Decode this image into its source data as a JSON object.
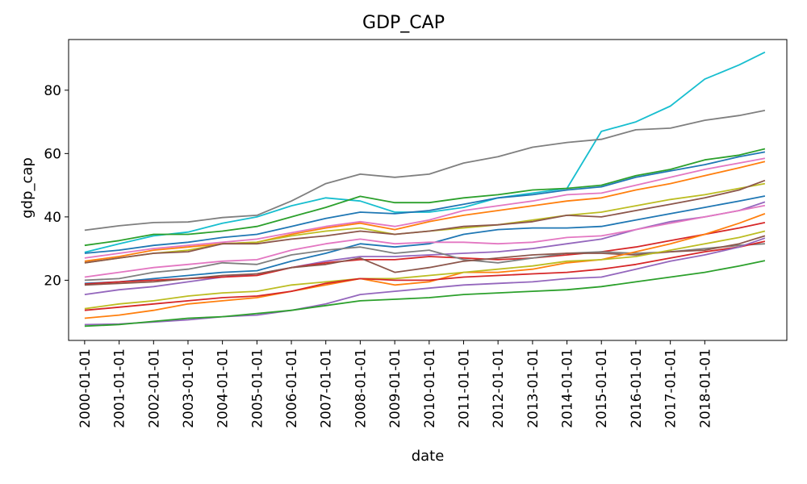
{
  "chart_data": {
    "type": "line",
    "title": "GDP_CAP",
    "xlabel": "date",
    "ylabel": "gdp_cap",
    "x_ticks": [
      "2000-01-01",
      "2001-01-01",
      "2002-01-01",
      "2003-01-01",
      "2004-01-01",
      "2005-01-01",
      "2006-01-01",
      "2007-01-01",
      "2008-01-01",
      "2009-01-01",
      "2010-01-01",
      "2011-01-01",
      "2012-01-01",
      "2013-01-01",
      "2014-01-01",
      "2015-01-01",
      "2016-01-01",
      "2017-01-01",
      "2018-01-01"
    ],
    "y_ticks": [
      20,
      40,
      60,
      80
    ],
    "ylim": [
      1,
      96
    ],
    "xlim": [
      "1999-07-15",
      "2020-05-20"
    ],
    "grid": false,
    "legend": "none",
    "x": [
      "2000-01-01",
      "2001-01-01",
      "2002-01-01",
      "2003-01-01",
      "2004-01-01",
      "2005-01-01",
      "2006-01-01",
      "2007-01-01",
      "2008-01-01",
      "2009-01-01",
      "2010-01-01",
      "2011-01-01",
      "2012-01-01",
      "2013-01-01",
      "2014-01-01",
      "2015-01-01",
      "2016-01-01",
      "2017-01-01",
      "2018-01-01",
      "2019-01-01",
      "2019-10-01"
    ],
    "series": [
      {
        "color": "#17becf",
        "values": [
          28.8,
          31.5,
          34.0,
          35.2,
          38.0,
          40.0,
          43.5,
          46.0,
          45.0,
          41.5,
          41.5,
          43.0,
          46.0,
          47.5,
          49.0,
          67.0,
          70.0,
          75.0,
          83.5,
          88.0,
          92.0
        ]
      },
      {
        "color": "#7f7f7f",
        "values": [
          35.8,
          37.2,
          38.2,
          38.4,
          39.8,
          40.5,
          45.0,
          50.5,
          53.5,
          52.5,
          53.5,
          57.0,
          59.0,
          62.0,
          63.5,
          64.5,
          67.5,
          68.0,
          70.5,
          72.0,
          73.6
        ]
      },
      {
        "color": "#2ca02c",
        "values": [
          31.0,
          32.5,
          34.5,
          34.5,
          35.5,
          37.0,
          40.0,
          43.0,
          46.5,
          44.5,
          44.5,
          46.0,
          47.0,
          48.5,
          49.0,
          50.0,
          53.0,
          55.0,
          58.0,
          59.5,
          61.5
        ]
      },
      {
        "color": "#1f77b4",
        "values": [
          28.5,
          29.5,
          31.0,
          32.0,
          33.5,
          34.5,
          37.0,
          39.5,
          41.5,
          41.0,
          42.0,
          44.0,
          46.0,
          47.0,
          48.5,
          49.5,
          52.5,
          54.5,
          56.5,
          59.0,
          60.5
        ]
      },
      {
        "color": "#e377c2",
        "values": [
          27.0,
          28.5,
          30.0,
          31.0,
          32.0,
          33.0,
          35.0,
          37.0,
          38.5,
          37.0,
          39.0,
          42.0,
          43.5,
          45.0,
          47.0,
          47.5,
          50.0,
          52.5,
          55.0,
          57.0,
          58.5
        ]
      },
      {
        "color": "#ff7f0e",
        "values": [
          26.0,
          27.5,
          29.5,
          30.5,
          31.5,
          32.0,
          34.5,
          36.5,
          38.0,
          36.0,
          38.5,
          40.5,
          42.0,
          43.5,
          45.0,
          46.0,
          48.5,
          50.5,
          53.0,
          55.5,
          57.5
        ]
      },
      {
        "color": "#bcbd22",
        "values": [
          25.5,
          27.0,
          28.5,
          29.5,
          31.5,
          32.0,
          34.0,
          35.5,
          36.5,
          34.5,
          35.5,
          36.5,
          37.5,
          39.0,
          40.5,
          41.5,
          43.5,
          45.5,
          47.0,
          49.0,
          50.5
        ]
      },
      {
        "color": "#8c564b",
        "values": [
          25.5,
          27.0,
          28.5,
          29.0,
          31.5,
          31.5,
          33.0,
          34.0,
          35.5,
          34.5,
          35.5,
          37.0,
          37.5,
          38.5,
          40.5,
          40.0,
          42.0,
          44.0,
          46.0,
          48.5,
          51.5
        ]
      },
      {
        "color": "#1f77b4",
        "values": [
          19.0,
          19.5,
          20.5,
          21.5,
          22.5,
          23.0,
          26.0,
          28.5,
          31.5,
          30.5,
          31.5,
          34.5,
          36.0,
          36.5,
          36.5,
          37.0,
          39.0,
          41.0,
          43.0,
          45.0,
          46.6
        ]
      },
      {
        "color": "#9467bd",
        "values": [
          15.5,
          17.0,
          18.0,
          19.5,
          21.0,
          22.0,
          24.0,
          26.0,
          27.5,
          27.5,
          28.0,
          28.5,
          29.0,
          30.0,
          31.5,
          33.0,
          36.0,
          38.5,
          40.0,
          42.0,
          44.7
        ]
      },
      {
        "color": "#e377c2",
        "values": [
          21.0,
          22.5,
          24.0,
          25.0,
          26.0,
          26.5,
          29.5,
          31.5,
          33.0,
          31.5,
          32.0,
          32.0,
          31.5,
          32.0,
          33.5,
          34.0,
          36.0,
          38.0,
          40.0,
          42.0,
          43.6
        ]
      },
      {
        "color": "#d62728",
        "values": [
          18.8,
          19.5,
          20.0,
          20.5,
          21.0,
          21.5,
          24.0,
          25.5,
          26.5,
          26.5,
          27.5,
          27.0,
          26.5,
          27.0,
          28.0,
          29.0,
          30.5,
          32.5,
          34.5,
          36.5,
          38.2
        ]
      },
      {
        "color": "#7f7f7f",
        "values": [
          20.0,
          20.5,
          22.5,
          23.5,
          25.5,
          25.0,
          28.0,
          29.5,
          30.5,
          28.5,
          29.5,
          26.5,
          25.5,
          27.0,
          28.5,
          29.0,
          28.5,
          29.0,
          30.0,
          31.0,
          31.5
        ]
      },
      {
        "color": "#8c564b",
        "values": [
          18.5,
          19.0,
          19.5,
          20.5,
          21.5,
          22.0,
          24.0,
          25.0,
          27.0,
          22.5,
          24.0,
          26.0,
          27.0,
          28.0,
          28.5,
          28.5,
          28.0,
          29.0,
          29.5,
          31.5,
          34.0
        ]
      },
      {
        "color": "#ff7f0e",
        "values": [
          8.0,
          9.0,
          10.5,
          12.5,
          13.5,
          14.5,
          16.5,
          18.5,
          20.5,
          18.5,
          19.5,
          22.5,
          22.5,
          23.5,
          25.5,
          26.5,
          29.0,
          31.5,
          34.5,
          38.0,
          41.0
        ]
      },
      {
        "color": "#bcbd22",
        "values": [
          11.0,
          12.5,
          13.5,
          15.0,
          16.0,
          16.5,
          18.5,
          19.5,
          20.5,
          20.5,
          21.5,
          22.5,
          23.5,
          24.5,
          26.0,
          26.5,
          27.5,
          29.5,
          31.5,
          33.5,
          35.5
        ]
      },
      {
        "color": "#d62728",
        "values": [
          10.5,
          11.5,
          12.5,
          13.5,
          14.5,
          15.0,
          16.5,
          19.0,
          20.5,
          20.0,
          20.0,
          21.0,
          21.5,
          22.0,
          22.5,
          23.5,
          25.0,
          27.0,
          29.0,
          30.5,
          32.3
        ]
      },
      {
        "color": "#9467bd",
        "values": [
          6.0,
          6.2,
          6.8,
          7.5,
          8.5,
          9.0,
          10.5,
          12.5,
          15.5,
          16.5,
          17.5,
          18.5,
          19.0,
          19.5,
          20.5,
          21.0,
          23.5,
          26.0,
          28.0,
          30.5,
          33.3
        ]
      },
      {
        "color": "#2ca02c",
        "values": [
          5.5,
          6.0,
          7.0,
          8.0,
          8.5,
          9.5,
          10.5,
          12.0,
          13.5,
          14.0,
          14.5,
          15.5,
          16.0,
          16.5,
          17.0,
          18.0,
          19.5,
          21.0,
          22.5,
          24.5,
          26.2
        ]
      }
    ]
  }
}
